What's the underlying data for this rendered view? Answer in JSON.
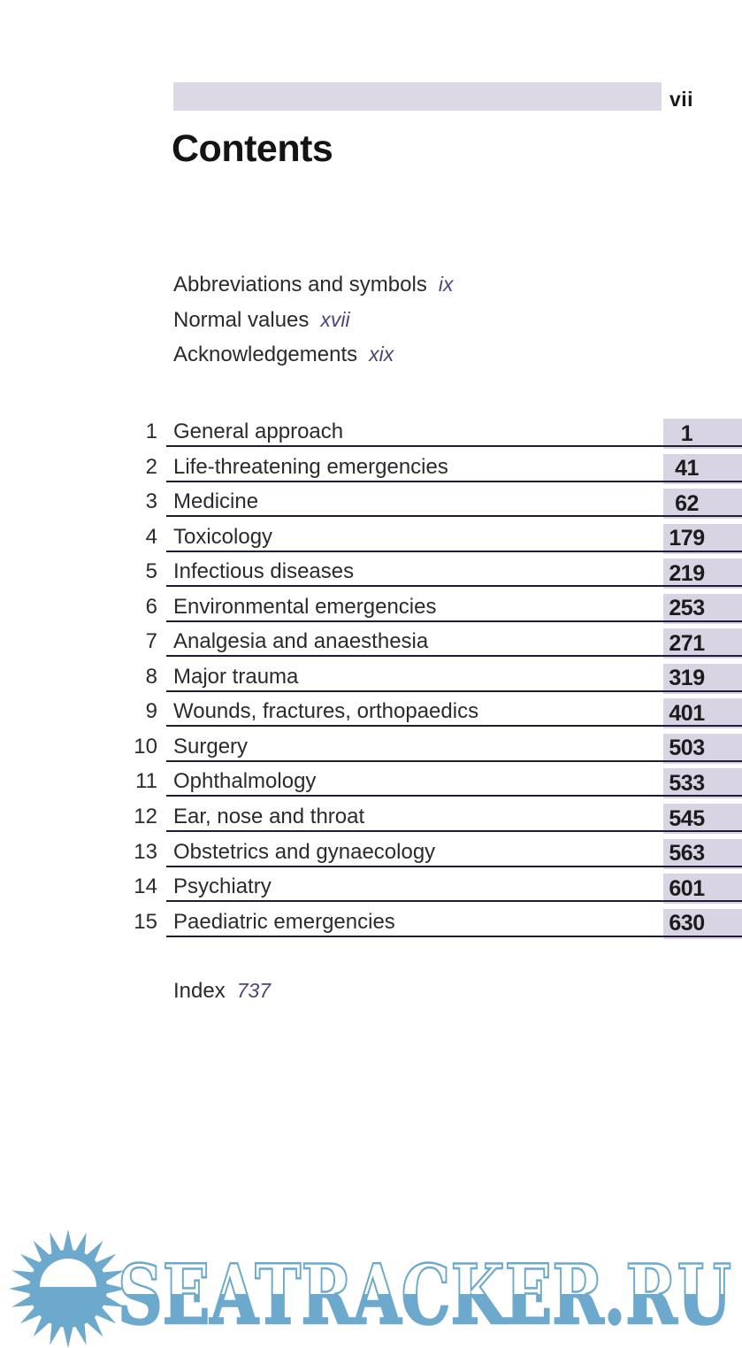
{
  "page": {
    "folio": "vii"
  },
  "title": "Contents",
  "front_matter": [
    {
      "label": "Abbreviations and symbols",
      "page": "ix"
    },
    {
      "label": "Normal values",
      "page": "xvii"
    },
    {
      "label": "Acknowledgements",
      "page": "xix"
    }
  ],
  "chapters": [
    {
      "num": "1",
      "title": "General approach",
      "page": "1"
    },
    {
      "num": "2",
      "title": "Life-threatening emergencies",
      "page": "41"
    },
    {
      "num": "3",
      "title": "Medicine",
      "page": "62"
    },
    {
      "num": "4",
      "title": "Toxicology",
      "page": "179"
    },
    {
      "num": "5",
      "title": "Infectious diseases",
      "page": "219"
    },
    {
      "num": "6",
      "title": "Environmental emergencies",
      "page": "253"
    },
    {
      "num": "7",
      "title": "Analgesia and anaesthesia",
      "page": "271"
    },
    {
      "num": "8",
      "title": "Major trauma",
      "page": "319"
    },
    {
      "num": "9",
      "title": "Wounds, fractures, orthopaedics",
      "page": "401"
    },
    {
      "num": "10",
      "title": "Surgery",
      "page": "503"
    },
    {
      "num": "11",
      "title": "Ophthalmology",
      "page": "533"
    },
    {
      "num": "12",
      "title": "Ear, nose and throat",
      "page": "545"
    },
    {
      "num": "13",
      "title": "Obstetrics and gynaecology",
      "page": "563"
    },
    {
      "num": "14",
      "title": "Psychiatry",
      "page": "601"
    },
    {
      "num": "15",
      "title": "Paediatric emergencies",
      "page": "630"
    }
  ],
  "index": {
    "label": "Index",
    "page": "737"
  },
  "watermark": {
    "text": "SEATRACKER.RU",
    "color": "#6CA9CC"
  },
  "colors": {
    "header_bar": "#dcd8e6",
    "page_number_box": "#d8d4e4",
    "rule_line": "#241a38",
    "front_matter_page": "#53427a"
  }
}
